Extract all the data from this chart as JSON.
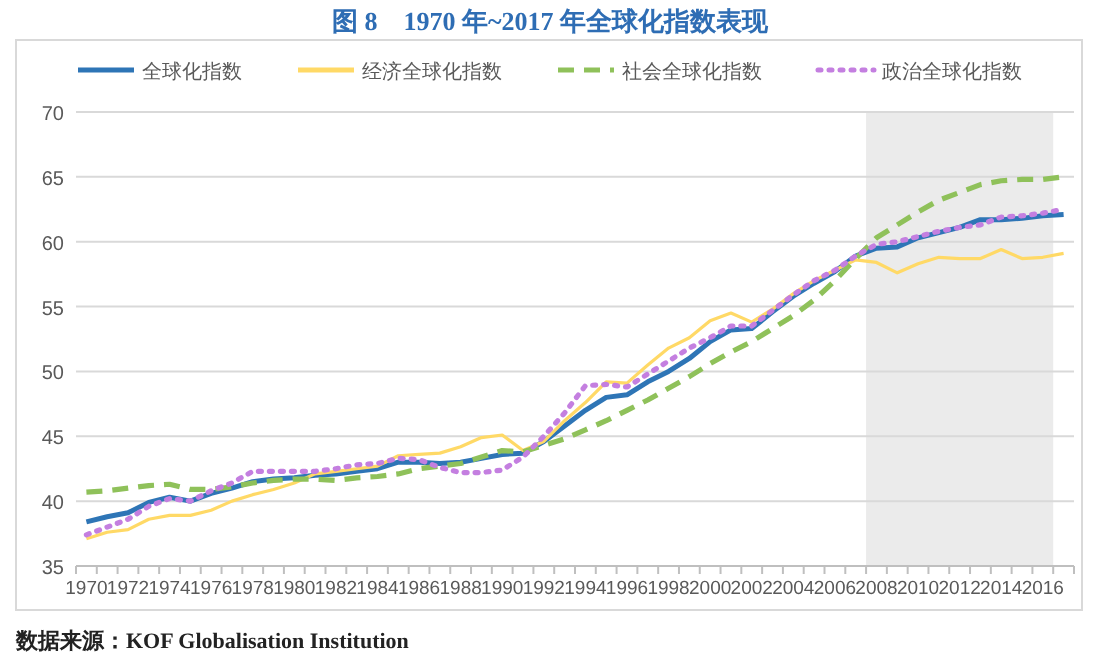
{
  "chart_data": {
    "type": "line",
    "title": "图 8　1970 年~2017 年全球化指数表现",
    "annotations": [
      "数据来源：KOF Globalisation Institution"
    ],
    "categories": [
      "1970",
      null,
      "1972",
      null,
      "1974",
      null,
      "1976",
      null,
      "1978",
      null,
      "1980",
      null,
      "1982",
      null,
      "1984",
      null,
      "1986",
      null,
      "1988",
      null,
      "1990",
      null,
      "1992",
      null,
      "1994",
      null,
      "1996",
      null,
      "1998",
      null,
      "2000",
      null,
      "2002",
      null,
      "2004",
      null,
      "2006",
      null,
      "2008",
      null,
      "2010",
      null,
      "2012",
      null,
      "2014",
      null,
      "2016",
      null
    ],
    "series": [
      {
        "name": "全球化指数",
        "color": "#2e75b6",
        "line_style": "solid",
        "values": [
          38.4,
          38.8,
          39.1,
          39.9,
          40.3,
          40.0,
          40.6,
          41.0,
          41.5,
          41.7,
          41.8,
          42.0,
          42.1,
          42.3,
          42.5,
          43.0,
          43.0,
          42.9,
          43.0,
          43.3,
          43.6,
          43.7,
          44.6,
          45.8,
          47.0,
          48.0,
          48.2,
          49.2,
          50.0,
          51.0,
          52.3,
          53.2,
          53.3,
          54.6,
          55.8,
          56.8,
          57.7,
          58.9,
          59.5,
          59.6,
          60.3,
          60.7,
          61.1,
          61.7,
          61.7,
          61.8,
          62.0,
          62.1
        ]
      },
      {
        "name": "经济全球化指数",
        "color": "#ffd966",
        "line_style": "solid",
        "values": [
          37.1,
          37.6,
          37.8,
          38.6,
          38.9,
          38.9,
          39.3,
          40.0,
          40.5,
          40.9,
          41.4,
          42.1,
          42.3,
          42.5,
          42.7,
          43.5,
          43.6,
          43.7,
          44.2,
          44.9,
          45.1,
          43.9,
          44.6,
          46.2,
          47.6,
          49.2,
          49.1,
          50.5,
          51.8,
          52.6,
          53.9,
          54.5,
          53.8,
          54.8,
          56.0,
          57.0,
          57.8,
          58.6,
          58.4,
          57.6,
          58.3,
          58.8,
          58.7,
          58.7,
          59.4,
          58.7,
          58.8,
          59.1
        ]
      },
      {
        "name": "社会全球化指数",
        "color": "#8fc15a",
        "line_style": "dashed",
        "values": [
          40.7,
          40.8,
          41.0,
          41.2,
          41.3,
          40.9,
          40.9,
          41.1,
          41.4,
          41.6,
          41.7,
          41.7,
          41.6,
          41.8,
          41.9,
          42.1,
          42.5,
          42.7,
          42.9,
          43.4,
          43.9,
          43.8,
          44.3,
          44.8,
          45.5,
          46.2,
          47.0,
          47.8,
          48.7,
          49.6,
          50.6,
          51.5,
          52.3,
          53.3,
          54.3,
          55.5,
          57.0,
          58.7,
          60.3,
          61.3,
          62.3,
          63.2,
          63.8,
          64.4,
          64.7,
          64.8,
          64.8,
          65.0
        ]
      },
      {
        "name": "政治全球化指数",
        "color": "#c47fe0",
        "line_style": "dotted",
        "values": [
          37.4,
          38.0,
          38.6,
          39.6,
          40.2,
          40.0,
          40.8,
          41.4,
          42.3,
          42.3,
          42.3,
          42.3,
          42.5,
          42.8,
          42.9,
          43.3,
          43.2,
          42.6,
          42.2,
          42.2,
          42.4,
          43.4,
          45.0,
          46.8,
          48.9,
          49.0,
          48.8,
          49.8,
          50.8,
          51.8,
          52.6,
          53.5,
          53.5,
          54.7,
          55.9,
          57.0,
          57.8,
          58.9,
          59.8,
          60.0,
          60.4,
          60.8,
          61.1,
          61.3,
          61.9,
          62.0,
          62.2,
          62.5
        ]
      }
    ],
    "ylim": [
      35,
      70
    ],
    "yticks": [
      35,
      40,
      45,
      50,
      55,
      60,
      65,
      70
    ],
    "grid": "y",
    "legend": "top",
    "bands": [
      {
        "axis": "x",
        "from": "2008",
        "to": "2016",
        "color": "#ebebeb"
      }
    ]
  }
}
